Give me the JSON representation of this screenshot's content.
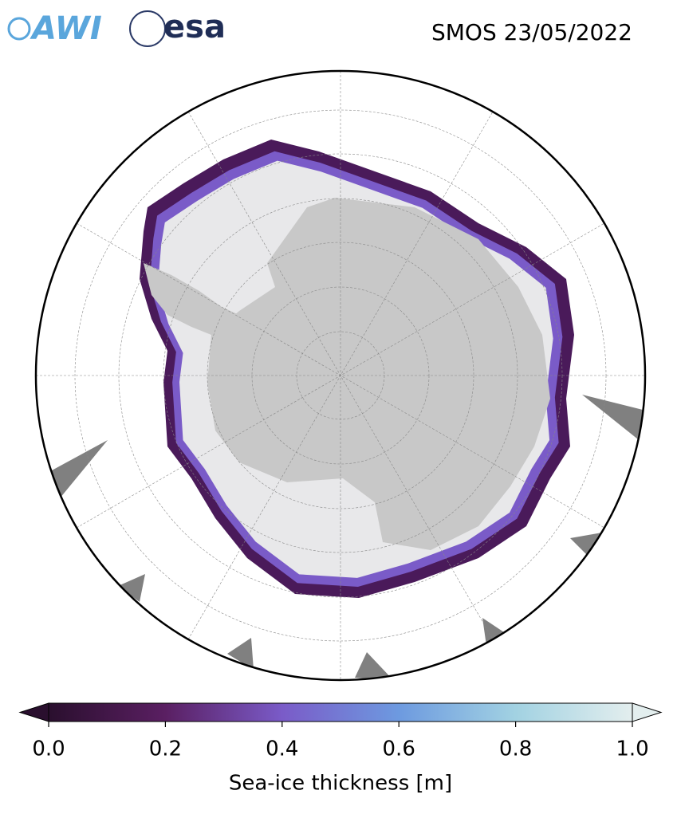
{
  "logos": [
    "AWI",
    "esa"
  ],
  "title": "SMOS 23/05/2022",
  "colorbar": {
    "label": "Sea-ice thickness [m]",
    "lim": [
      0,
      1
    ],
    "ticks": [
      {
        "value": 0,
        "label": "0.0"
      },
      {
        "value": 0.2,
        "label": "0.2"
      },
      {
        "value": 0.4,
        "label": "0.4"
      },
      {
        "value": 0.6,
        "label": "0.6"
      },
      {
        "value": 0.8,
        "label": "0.8"
      },
      {
        "value": 1,
        "label": "1.0"
      }
    ],
    "colors": [
      "#2a0f2e",
      "#5a1f62",
      "#7a5bc8",
      "#6d9ae0",
      "#a2d2e2",
      "#e3eeee"
    ]
  }
}
